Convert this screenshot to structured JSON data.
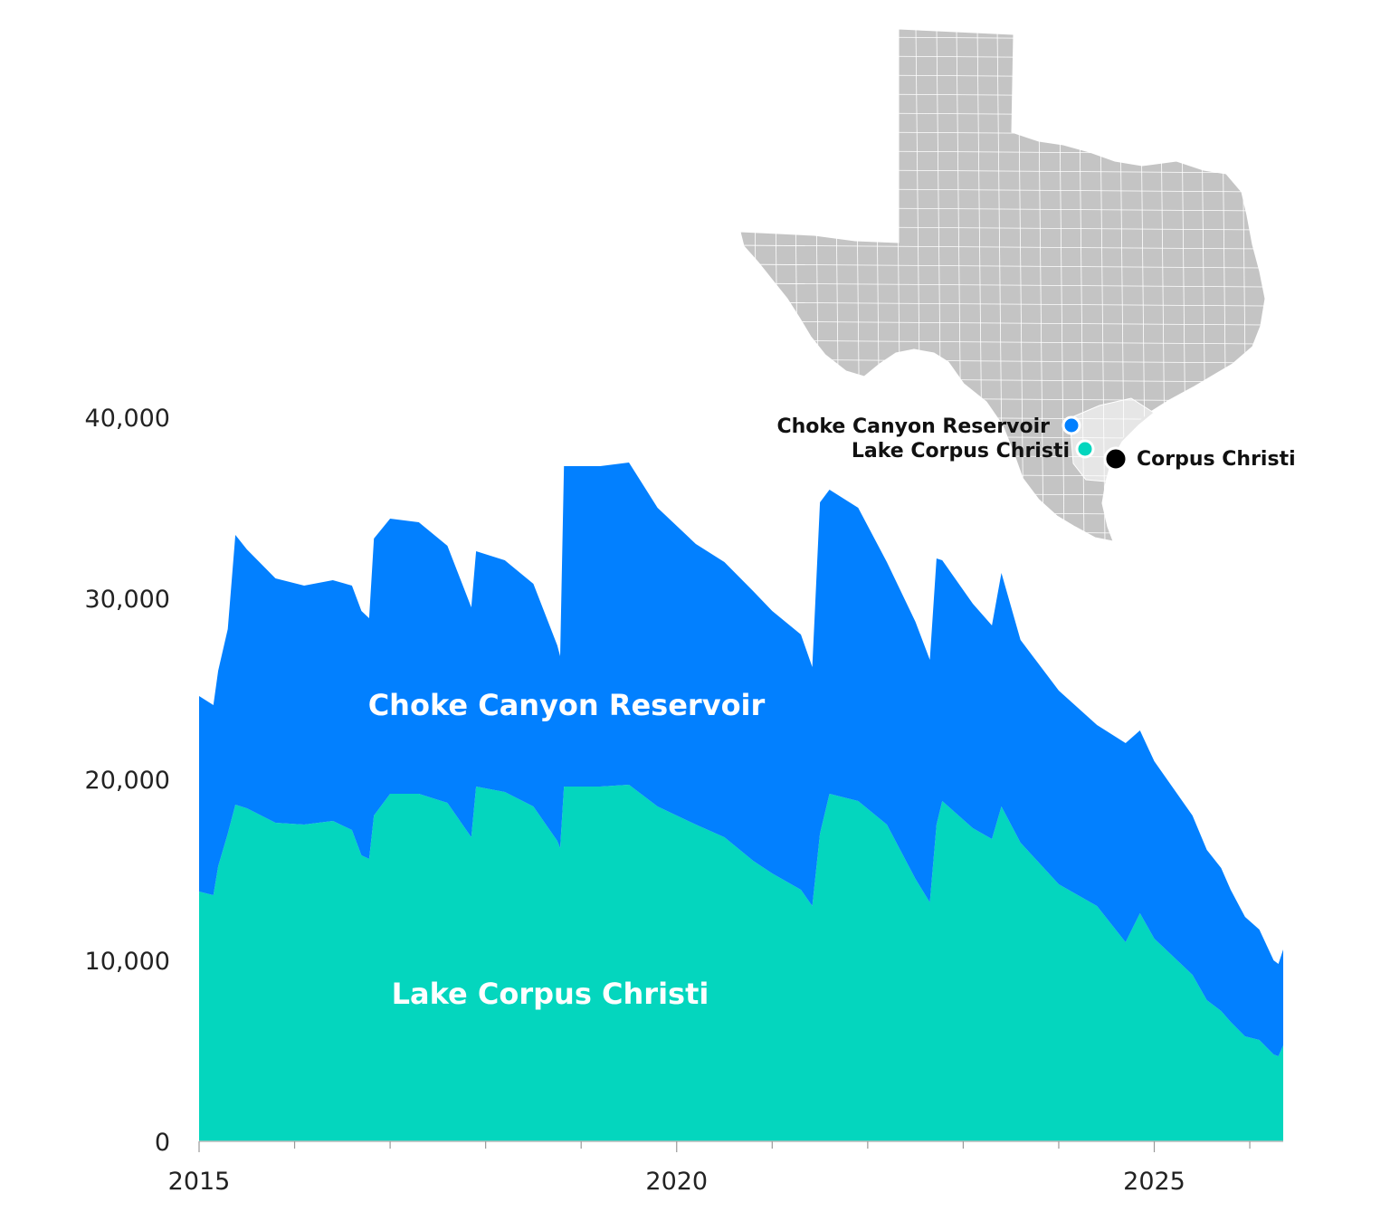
{
  "chart_data": {
    "type": "area",
    "stacked": true,
    "x_ticks": [
      2015,
      2020,
      2025
    ],
    "y_ticks": [
      0,
      10000,
      20000,
      30000,
      40000
    ],
    "y_tick_labels": [
      "0",
      "10,000",
      "20,000",
      "30,000",
      "40,000"
    ],
    "x_tick_labels": [
      "2015",
      "2020",
      "2025"
    ],
    "ylim": [
      0,
      40000
    ],
    "xlim": [
      2015.0,
      2026.35
    ],
    "grid": false,
    "series": [
      {
        "name": "Lake Corpus Christi",
        "color": "#04d6be",
        "points": [
          [
            2015.0,
            13800
          ],
          [
            2015.15,
            13600
          ],
          [
            2015.2,
            15200
          ],
          [
            2015.3,
            17000
          ],
          [
            2015.38,
            18600
          ],
          [
            2015.5,
            18400
          ],
          [
            2015.8,
            17600
          ],
          [
            2016.1,
            17500
          ],
          [
            2016.4,
            17700
          ],
          [
            2016.6,
            17200
          ],
          [
            2016.7,
            15800
          ],
          [
            2016.78,
            15600
          ],
          [
            2016.83,
            18000
          ],
          [
            2017.0,
            19200
          ],
          [
            2017.3,
            19200
          ],
          [
            2017.6,
            18700
          ],
          [
            2017.85,
            16800
          ],
          [
            2017.9,
            19600
          ],
          [
            2018.2,
            19300
          ],
          [
            2018.5,
            18500
          ],
          [
            2018.75,
            16600
          ],
          [
            2018.78,
            16200
          ],
          [
            2018.82,
            19600
          ],
          [
            2019.2,
            19600
          ],
          [
            2019.5,
            19700
          ],
          [
            2019.8,
            18500
          ],
          [
            2020.2,
            17500
          ],
          [
            2020.5,
            16800
          ],
          [
            2020.8,
            15500
          ],
          [
            2021.0,
            14800
          ],
          [
            2021.3,
            13900
          ],
          [
            2021.42,
            13000
          ],
          [
            2021.5,
            17000
          ],
          [
            2021.6,
            19200
          ],
          [
            2021.9,
            18800
          ],
          [
            2022.2,
            17500
          ],
          [
            2022.5,
            14500
          ],
          [
            2022.65,
            13200
          ],
          [
            2022.72,
            17500
          ],
          [
            2022.78,
            18800
          ],
          [
            2023.1,
            17300
          ],
          [
            2023.3,
            16700
          ],
          [
            2023.4,
            18500
          ],
          [
            2023.6,
            16500
          ],
          [
            2024.0,
            14200
          ],
          [
            2024.4,
            13000
          ],
          [
            2024.7,
            11000
          ],
          [
            2024.85,
            12600
          ],
          [
            2025.0,
            11200
          ],
          [
            2025.4,
            9200
          ],
          [
            2025.55,
            7800
          ],
          [
            2025.7,
            7200
          ],
          [
            2025.8,
            6600
          ],
          [
            2025.95,
            5800
          ],
          [
            2026.1,
            5600
          ],
          [
            2026.25,
            4800
          ],
          [
            2026.3,
            4700
          ],
          [
            2026.35,
            5300
          ]
        ]
      },
      {
        "name": "Choke Canyon Reservoir",
        "color": "#0280ff",
        "points": [
          [
            2015.0,
            10800
          ],
          [
            2015.15,
            10500
          ],
          [
            2015.2,
            10800
          ],
          [
            2015.3,
            11300
          ],
          [
            2015.38,
            14900
          ],
          [
            2015.5,
            14300
          ],
          [
            2015.8,
            13500
          ],
          [
            2016.1,
            13200
          ],
          [
            2016.4,
            13300
          ],
          [
            2016.6,
            13500
          ],
          [
            2016.7,
            13500
          ],
          [
            2016.78,
            13300
          ],
          [
            2016.83,
            15300
          ],
          [
            2017.0,
            15200
          ],
          [
            2017.3,
            15000
          ],
          [
            2017.6,
            14200
          ],
          [
            2017.85,
            12700
          ],
          [
            2017.9,
            13000
          ],
          [
            2018.2,
            12800
          ],
          [
            2018.5,
            12300
          ],
          [
            2018.75,
            10800
          ],
          [
            2018.78,
            10600
          ],
          [
            2018.82,
            17700
          ],
          [
            2019.2,
            17700
          ],
          [
            2019.5,
            17800
          ],
          [
            2019.8,
            16500
          ],
          [
            2020.2,
            15500
          ],
          [
            2020.5,
            15200
          ],
          [
            2020.8,
            14900
          ],
          [
            2021.0,
            14500
          ],
          [
            2021.3,
            14100
          ],
          [
            2021.42,
            13200
          ],
          [
            2021.5,
            18300
          ],
          [
            2021.6,
            16800
          ],
          [
            2021.9,
            16200
          ],
          [
            2022.2,
            14500
          ],
          [
            2022.5,
            14200
          ],
          [
            2022.65,
            13400
          ],
          [
            2022.72,
            14700
          ],
          [
            2022.78,
            13300
          ],
          [
            2023.1,
            12400
          ],
          [
            2023.3,
            11800
          ],
          [
            2023.4,
            12900
          ],
          [
            2023.6,
            11200
          ],
          [
            2024.0,
            10700
          ],
          [
            2024.4,
            10000
          ],
          [
            2024.7,
            11000
          ],
          [
            2024.85,
            10100
          ],
          [
            2025.0,
            9800
          ],
          [
            2025.4,
            8800
          ],
          [
            2025.55,
            8300
          ],
          [
            2025.7,
            7900
          ],
          [
            2025.8,
            7300
          ],
          [
            2025.95,
            6600
          ],
          [
            2026.1,
            6100
          ],
          [
            2026.25,
            5200
          ],
          [
            2026.3,
            5100
          ],
          [
            2026.35,
            5300
          ]
        ]
      }
    ],
    "series_labels": [
      {
        "series": "Choke Canyon Reservoir",
        "text": "Choke Canyon Reservoir"
      },
      {
        "series": "Lake Corpus Christi",
        "text": "Lake Corpus Christi"
      }
    ]
  },
  "map_inset": {
    "region": "Texas",
    "fill_color": "#c4c4c4",
    "highlight_color": "#e6e6e6",
    "locations": [
      {
        "name": "Choke Canyon Reservoir",
        "label": "Choke Canyon Reservoir",
        "color": "#0280ff"
      },
      {
        "name": "Lake Corpus Christi",
        "label": "Lake Corpus Christi",
        "color": "#04d6be"
      },
      {
        "name": "Corpus Christi",
        "label": "Corpus Christi",
        "color": "#000000"
      }
    ]
  }
}
